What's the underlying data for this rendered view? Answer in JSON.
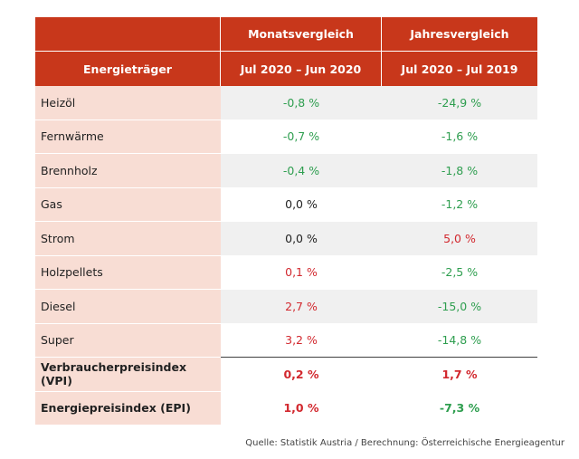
{
  "header": {
    "col1_title": "Energieträger",
    "col2_title": "Monatsvergleich",
    "col2_subtitle": "Jul 2020 – Jun 2020",
    "col3_title": "Jahresvergleich",
    "col3_subtitle": "Jul 2020 – Jul 2019"
  },
  "rows": [
    {
      "label": "Heizöl",
      "month": "-0,8 %",
      "year": "-24,9 %"
    },
    {
      "label": "Fernwärme",
      "month": "-0,7 %",
      "year": "-1,6 %"
    },
    {
      "label": "Brennholz",
      "month": "-0,4 %",
      "year": "-1,8 %"
    },
    {
      "label": "Gas",
      "month": "0,0 %",
      "year": "-1,2 %"
    },
    {
      "label": "Strom",
      "month": "0,0 %",
      "year": "5,0 %"
    },
    {
      "label": "Holzpellets",
      "month": "0,1 %",
      "year": "-2,5 %"
    },
    {
      "label": "Diesel",
      "month": "2,7 %",
      "year": "-15,0 %"
    },
    {
      "label": "Super",
      "month": "3,2 %",
      "year": "-14,8 %"
    }
  ],
  "summary": [
    {
      "label": "Verbraucherpreisindex (VPI)",
      "month": "0,2 %",
      "year": "1,7 %"
    },
    {
      "label": "Energiepreisindex (EPI)",
      "month": "1,0 %",
      "year": "-7,3 %"
    }
  ],
  "source": "Quelle: Statistik Austria / Berechnung: Österreichische Energieagentur",
  "colors": {
    "header_bg": "#c8371b",
    "label_bg": "#f8ddd4",
    "negative": "#2e9e4f",
    "positive": "#d2282e",
    "zero": "#222222"
  }
}
